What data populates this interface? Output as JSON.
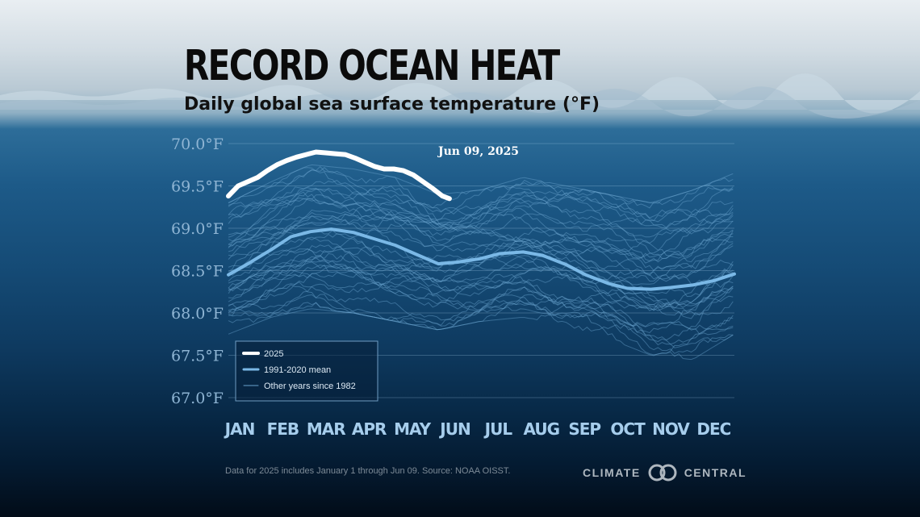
{
  "header": {
    "title": "RECORD OCEAN HEAT",
    "subtitle": "Daily global sea surface temperature (°F)"
  },
  "footnote": "Data for 2025 includes January 1 through Jun 09. Source: NOAA OISST.",
  "logo": {
    "left_word": "CLIMATE",
    "right_word": "CENTRAL"
  },
  "chart_data": {
    "type": "line",
    "title": "RECORD OCEAN HEAT",
    "subtitle": "Daily global sea surface temperature (°F)",
    "ylim": [
      67.0,
      70.0
    ],
    "yticks": [
      67.0,
      67.5,
      68.0,
      68.5,
      69.0,
      69.5,
      70.0
    ],
    "ytick_labels": [
      "67.0°F",
      "67.5°F",
      "68.0°F",
      "68.5°F",
      "69.0°F",
      "69.5°F",
      "70.0°F"
    ],
    "categories": [
      "JAN",
      "FEB",
      "MAR",
      "APR",
      "MAY",
      "JUN",
      "JUL",
      "AUG",
      "SEP",
      "OCT",
      "NOV",
      "DEC"
    ],
    "grid": true,
    "legend_position": "bottom-left",
    "annotation": "Jun 09, 2025",
    "x_unit": "day of year",
    "series": [
      {
        "name": "2025",
        "color": "#ffffff",
        "x": [
          1,
          8,
          15,
          22,
          29,
          36,
          43,
          50,
          57,
          64,
          71,
          78,
          85,
          92,
          99,
          106,
          113,
          120,
          127,
          134,
          141,
          148,
          155,
          160
        ],
        "values": [
          69.38,
          69.5,
          69.55,
          69.6,
          69.68,
          69.75,
          69.8,
          69.84,
          69.87,
          69.9,
          69.89,
          69.88,
          69.87,
          69.83,
          69.78,
          69.73,
          69.7,
          69.7,
          69.68,
          69.63,
          69.55,
          69.47,
          69.38,
          69.35
        ]
      },
      {
        "name": "1991-2020 mean",
        "color": "#7ab8e6",
        "x": [
          1,
          15,
          32,
          46,
          60,
          75,
          91,
          105,
          121,
          135,
          152,
          166,
          182,
          196,
          213,
          227,
          244,
          258,
          274,
          288,
          305,
          319,
          335,
          350,
          365
        ],
        "values": [
          68.45,
          68.58,
          68.75,
          68.9,
          68.96,
          68.99,
          68.95,
          68.88,
          68.8,
          68.7,
          68.58,
          68.6,
          68.64,
          68.7,
          68.72,
          68.68,
          68.57,
          68.45,
          68.35,
          68.29,
          68.28,
          68.3,
          68.33,
          68.38,
          68.46
        ]
      },
      {
        "name": "Other years since 1982",
        "color": "#6aa3cf",
        "x": [
          1,
          32,
          60,
          91,
          121,
          152,
          182,
          213,
          244,
          274,
          305,
          335,
          365
        ],
        "values_low": [
          67.75,
          67.95,
          68.05,
          68.0,
          67.9,
          67.8,
          67.9,
          67.95,
          67.85,
          67.7,
          67.5,
          67.45,
          67.75
        ],
        "values_high": [
          69.3,
          69.55,
          69.75,
          69.7,
          69.6,
          69.4,
          69.45,
          69.6,
          69.5,
          69.4,
          69.3,
          69.45,
          69.65
        ]
      }
    ]
  }
}
